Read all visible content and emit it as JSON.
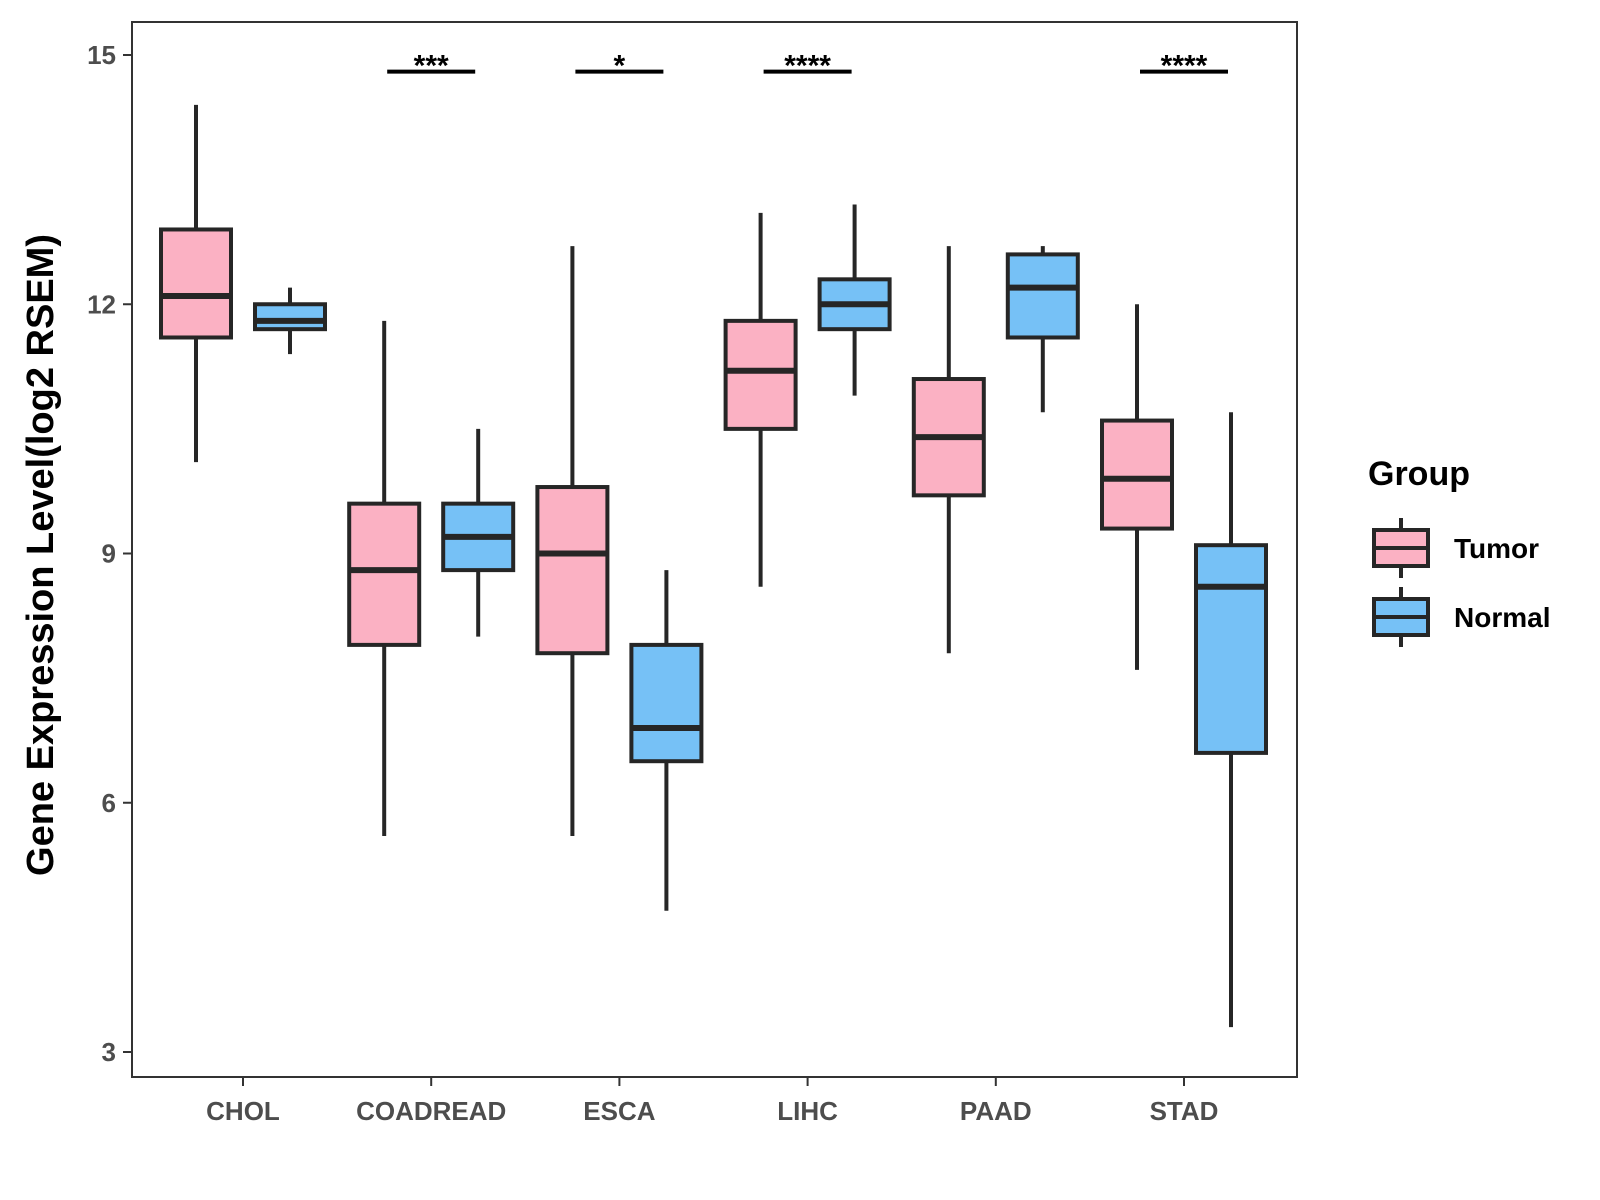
{
  "chart_data": {
    "type": "boxplot",
    "ylabel": "Gene Expression Level(log2 RSEM)",
    "xlabel": "",
    "ylim": [
      2.7,
      15.4
    ],
    "yticks": [
      3,
      6,
      9,
      12,
      15
    ],
    "ytick_labels": [
      "3",
      "6",
      "9",
      "12",
      "15"
    ],
    "categories": [
      "CHOL",
      "COADREAD",
      "ESCA",
      "LIHC",
      "PAAD",
      "STAD"
    ],
    "legend": {
      "title": "Group",
      "entries": [
        "Tumor",
        "Normal"
      ],
      "position": "right"
    },
    "colors": {
      "Tumor": "#FBB1C3",
      "Normal": "#76C1F6",
      "outline": "#262626"
    },
    "series": [
      {
        "name": "Tumor",
        "boxes": [
          {
            "min": 10.1,
            "q1": 11.6,
            "median": 12.1,
            "q3": 12.9,
            "max": 14.4
          },
          {
            "min": 5.6,
            "q1": 7.9,
            "median": 8.8,
            "q3": 9.6,
            "max": 11.8
          },
          {
            "min": 5.6,
            "q1": 7.8,
            "median": 9.0,
            "q3": 9.8,
            "max": 12.7
          },
          {
            "min": 8.6,
            "q1": 10.5,
            "median": 11.2,
            "q3": 11.8,
            "max": 13.1
          },
          {
            "min": 7.8,
            "q1": 9.7,
            "median": 10.4,
            "q3": 11.1,
            "max": 12.7
          },
          {
            "min": 7.6,
            "q1": 9.3,
            "median": 9.9,
            "q3": 10.6,
            "max": 12.0
          }
        ]
      },
      {
        "name": "Normal",
        "boxes": [
          {
            "min": 11.4,
            "q1": 11.7,
            "median": 11.8,
            "q3": 12.0,
            "max": 12.2
          },
          {
            "min": 8.0,
            "q1": 8.8,
            "median": 9.2,
            "q3": 9.6,
            "max": 10.5
          },
          {
            "min": 4.7,
            "q1": 6.5,
            "median": 6.9,
            "q3": 7.9,
            "max": 8.8
          },
          {
            "min": 10.9,
            "q1": 11.7,
            "median": 12.0,
            "q3": 12.3,
            "max": 13.2
          },
          {
            "min": 10.7,
            "q1": 11.6,
            "median": 12.2,
            "q3": 12.6,
            "max": 12.7
          },
          {
            "min": 3.3,
            "q1": 6.6,
            "median": 8.6,
            "q3": 9.1,
            "max": 10.7
          }
        ]
      }
    ],
    "significance": [
      {
        "category": "COADREAD",
        "label": "***",
        "y": 14.8
      },
      {
        "category": "ESCA",
        "label": "*",
        "y": 14.8
      },
      {
        "category": "LIHC",
        "label": "****",
        "y": 14.8
      },
      {
        "category": "STAD",
        "label": "****",
        "y": 14.8
      }
    ]
  }
}
